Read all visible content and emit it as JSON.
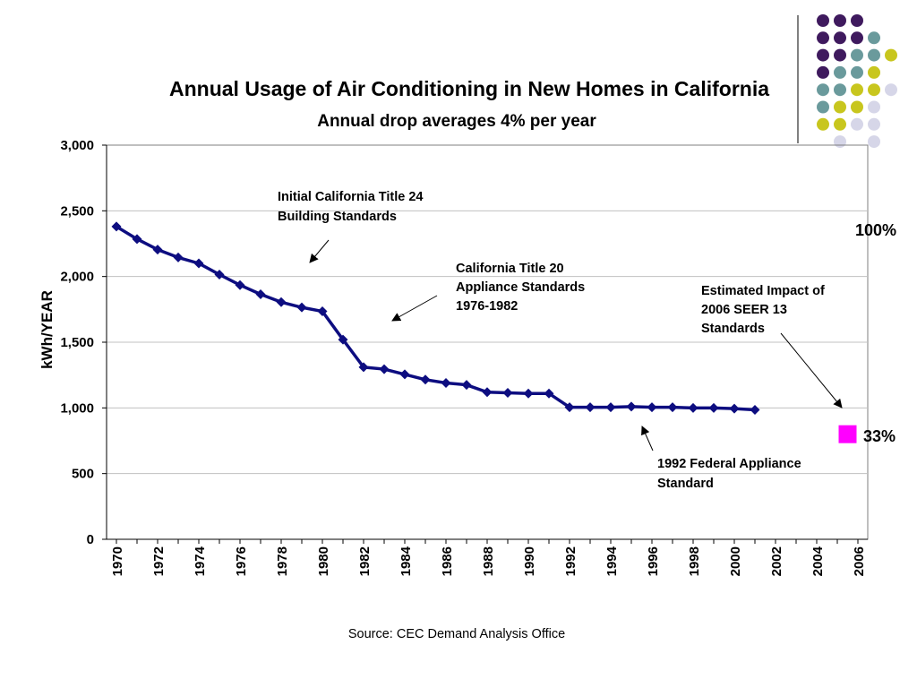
{
  "slide": {
    "source": "Source: CEC Demand Analysis Office",
    "decor_colors": [
      "#3f1a5e",
      "#6a9a9c",
      "#c8c61e",
      "#d6d6e8"
    ]
  },
  "chart_data": {
    "type": "line",
    "title": "Annual Usage of Air Conditioning in New Homes in California",
    "subtitle": "Annual drop averages 4% per year",
    "xlabel": "",
    "ylabel": "kWh/YEAR",
    "xlim": [
      1970,
      2006
    ],
    "ylim": [
      0,
      3000
    ],
    "y_ticks": [
      0,
      500,
      1000,
      1500,
      2000,
      2500,
      3000
    ],
    "y_tick_labels": [
      "0",
      "500",
      "1,000",
      "1,500",
      "2,000",
      "2,500",
      "3,000"
    ],
    "x_tick_labels": [
      "1970",
      "1972",
      "1974",
      "1976",
      "1978",
      "1980",
      "1982",
      "1984",
      "1986",
      "1988",
      "1990",
      "1992",
      "1994",
      "1996",
      "1998",
      "2000",
      "2002",
      "2004",
      "2006"
    ],
    "grid": "horizontal",
    "series": [
      {
        "color": "#0d0d80",
        "x": [
          1970,
          1971,
          1972,
          1973,
          1974,
          1975,
          1976,
          1977,
          1978,
          1979,
          1980,
          1981,
          1982,
          1983,
          1984,
          1985,
          1986,
          1987,
          1988,
          1989,
          1990,
          1991,
          1992,
          1993,
          1994,
          1995,
          1996,
          1997,
          1998,
          1999,
          2000,
          2001
        ],
        "values": [
          2380,
          2285,
          2205,
          2145,
          2100,
          2015,
          1935,
          1865,
          1805,
          1765,
          1735,
          1520,
          1310,
          1295,
          1255,
          1215,
          1190,
          1175,
          1120,
          1115,
          1110,
          1110,
          1005,
          1005,
          1005,
          1010,
          1005,
          1005,
          1000,
          1000,
          995,
          985
        ]
      }
    ],
    "marker_point": {
      "x": 2005.5,
      "y": 800,
      "color": "#ff00ff"
    },
    "percent_labels": {
      "top": "100%",
      "bottom": "33%"
    },
    "annotations": [
      {
        "lines": [
          "Initial California Title 24",
          "Building Standards"
        ]
      },
      {
        "lines": [
          "California Title 20",
          "Appliance Standards",
          "1976-1982"
        ]
      },
      {
        "lines": [
          "Estimated Impact of",
          "2006 SEER 13",
          "Standards"
        ]
      },
      {
        "lines": [
          "1992 Federal Appliance",
          "Standard"
        ]
      }
    ]
  }
}
